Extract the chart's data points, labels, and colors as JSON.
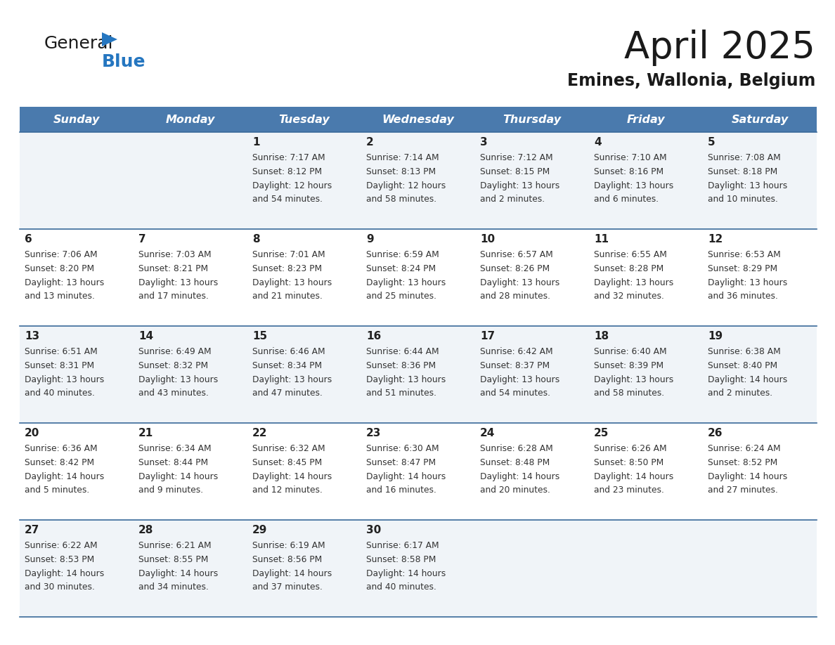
{
  "title": "April 2025",
  "subtitle": "Emines, Wallonia, Belgium",
  "days_of_week": [
    "Sunday",
    "Monday",
    "Tuesday",
    "Wednesday",
    "Thursday",
    "Friday",
    "Saturday"
  ],
  "header_bg": "#4a7aad",
  "header_text": "#FFFFFF",
  "row_bg_odd": "#f0f4f8",
  "row_bg_even": "#FFFFFF",
  "day_number_color": "#222222",
  "text_color": "#333333",
  "border_color": "#3a6a9a",
  "calendar": [
    [
      {
        "day": null,
        "sunrise": null,
        "sunset": null,
        "daylight_line1": null,
        "daylight_line2": null
      },
      {
        "day": null,
        "sunrise": null,
        "sunset": null,
        "daylight_line1": null,
        "daylight_line2": null
      },
      {
        "day": "1",
        "sunrise": "7:17 AM",
        "sunset": "8:12 PM",
        "daylight_line1": "Daylight: 12 hours",
        "daylight_line2": "and 54 minutes."
      },
      {
        "day": "2",
        "sunrise": "7:14 AM",
        "sunset": "8:13 PM",
        "daylight_line1": "Daylight: 12 hours",
        "daylight_line2": "and 58 minutes."
      },
      {
        "day": "3",
        "sunrise": "7:12 AM",
        "sunset": "8:15 PM",
        "daylight_line1": "Daylight: 13 hours",
        "daylight_line2": "and 2 minutes."
      },
      {
        "day": "4",
        "sunrise": "7:10 AM",
        "sunset": "8:16 PM",
        "daylight_line1": "Daylight: 13 hours",
        "daylight_line2": "and 6 minutes."
      },
      {
        "day": "5",
        "sunrise": "7:08 AM",
        "sunset": "8:18 PM",
        "daylight_line1": "Daylight: 13 hours",
        "daylight_line2": "and 10 minutes."
      }
    ],
    [
      {
        "day": "6",
        "sunrise": "7:06 AM",
        "sunset": "8:20 PM",
        "daylight_line1": "Daylight: 13 hours",
        "daylight_line2": "and 13 minutes."
      },
      {
        "day": "7",
        "sunrise": "7:03 AM",
        "sunset": "8:21 PM",
        "daylight_line1": "Daylight: 13 hours",
        "daylight_line2": "and 17 minutes."
      },
      {
        "day": "8",
        "sunrise": "7:01 AM",
        "sunset": "8:23 PM",
        "daylight_line1": "Daylight: 13 hours",
        "daylight_line2": "and 21 minutes."
      },
      {
        "day": "9",
        "sunrise": "6:59 AM",
        "sunset": "8:24 PM",
        "daylight_line1": "Daylight: 13 hours",
        "daylight_line2": "and 25 minutes."
      },
      {
        "day": "10",
        "sunrise": "6:57 AM",
        "sunset": "8:26 PM",
        "daylight_line1": "Daylight: 13 hours",
        "daylight_line2": "and 28 minutes."
      },
      {
        "day": "11",
        "sunrise": "6:55 AM",
        "sunset": "8:28 PM",
        "daylight_line1": "Daylight: 13 hours",
        "daylight_line2": "and 32 minutes."
      },
      {
        "day": "12",
        "sunrise": "6:53 AM",
        "sunset": "8:29 PM",
        "daylight_line1": "Daylight: 13 hours",
        "daylight_line2": "and 36 minutes."
      }
    ],
    [
      {
        "day": "13",
        "sunrise": "6:51 AM",
        "sunset": "8:31 PM",
        "daylight_line1": "Daylight: 13 hours",
        "daylight_line2": "and 40 minutes."
      },
      {
        "day": "14",
        "sunrise": "6:49 AM",
        "sunset": "8:32 PM",
        "daylight_line1": "Daylight: 13 hours",
        "daylight_line2": "and 43 minutes."
      },
      {
        "day": "15",
        "sunrise": "6:46 AM",
        "sunset": "8:34 PM",
        "daylight_line1": "Daylight: 13 hours",
        "daylight_line2": "and 47 minutes."
      },
      {
        "day": "16",
        "sunrise": "6:44 AM",
        "sunset": "8:36 PM",
        "daylight_line1": "Daylight: 13 hours",
        "daylight_line2": "and 51 minutes."
      },
      {
        "day": "17",
        "sunrise": "6:42 AM",
        "sunset": "8:37 PM",
        "daylight_line1": "Daylight: 13 hours",
        "daylight_line2": "and 54 minutes."
      },
      {
        "day": "18",
        "sunrise": "6:40 AM",
        "sunset": "8:39 PM",
        "daylight_line1": "Daylight: 13 hours",
        "daylight_line2": "and 58 minutes."
      },
      {
        "day": "19",
        "sunrise": "6:38 AM",
        "sunset": "8:40 PM",
        "daylight_line1": "Daylight: 14 hours",
        "daylight_line2": "and 2 minutes."
      }
    ],
    [
      {
        "day": "20",
        "sunrise": "6:36 AM",
        "sunset": "8:42 PM",
        "daylight_line1": "Daylight: 14 hours",
        "daylight_line2": "and 5 minutes."
      },
      {
        "day": "21",
        "sunrise": "6:34 AM",
        "sunset": "8:44 PM",
        "daylight_line1": "Daylight: 14 hours",
        "daylight_line2": "and 9 minutes."
      },
      {
        "day": "22",
        "sunrise": "6:32 AM",
        "sunset": "8:45 PM",
        "daylight_line1": "Daylight: 14 hours",
        "daylight_line2": "and 12 minutes."
      },
      {
        "day": "23",
        "sunrise": "6:30 AM",
        "sunset": "8:47 PM",
        "daylight_line1": "Daylight: 14 hours",
        "daylight_line2": "and 16 minutes."
      },
      {
        "day": "24",
        "sunrise": "6:28 AM",
        "sunset": "8:48 PM",
        "daylight_line1": "Daylight: 14 hours",
        "daylight_line2": "and 20 minutes."
      },
      {
        "day": "25",
        "sunrise": "6:26 AM",
        "sunset": "8:50 PM",
        "daylight_line1": "Daylight: 14 hours",
        "daylight_line2": "and 23 minutes."
      },
      {
        "day": "26",
        "sunrise": "6:24 AM",
        "sunset": "8:52 PM",
        "daylight_line1": "Daylight: 14 hours",
        "daylight_line2": "and 27 minutes."
      }
    ],
    [
      {
        "day": "27",
        "sunrise": "6:22 AM",
        "sunset": "8:53 PM",
        "daylight_line1": "Daylight: 14 hours",
        "daylight_line2": "and 30 minutes."
      },
      {
        "day": "28",
        "sunrise": "6:21 AM",
        "sunset": "8:55 PM",
        "daylight_line1": "Daylight: 14 hours",
        "daylight_line2": "and 34 minutes."
      },
      {
        "day": "29",
        "sunrise": "6:19 AM",
        "sunset": "8:56 PM",
        "daylight_line1": "Daylight: 14 hours",
        "daylight_line2": "and 37 minutes."
      },
      {
        "day": "30",
        "sunrise": "6:17 AM",
        "sunset": "8:58 PM",
        "daylight_line1": "Daylight: 14 hours",
        "daylight_line2": "and 40 minutes."
      },
      {
        "day": null,
        "sunrise": null,
        "sunset": null,
        "daylight_line1": null,
        "daylight_line2": null
      },
      {
        "day": null,
        "sunrise": null,
        "sunset": null,
        "daylight_line1": null,
        "daylight_line2": null
      },
      {
        "day": null,
        "sunrise": null,
        "sunset": null,
        "daylight_line1": null,
        "daylight_line2": null
      }
    ]
  ],
  "logo_general_color": "#1a1a1a",
  "logo_blue_color": "#2576c0",
  "logo_triangle_color": "#2576c0"
}
